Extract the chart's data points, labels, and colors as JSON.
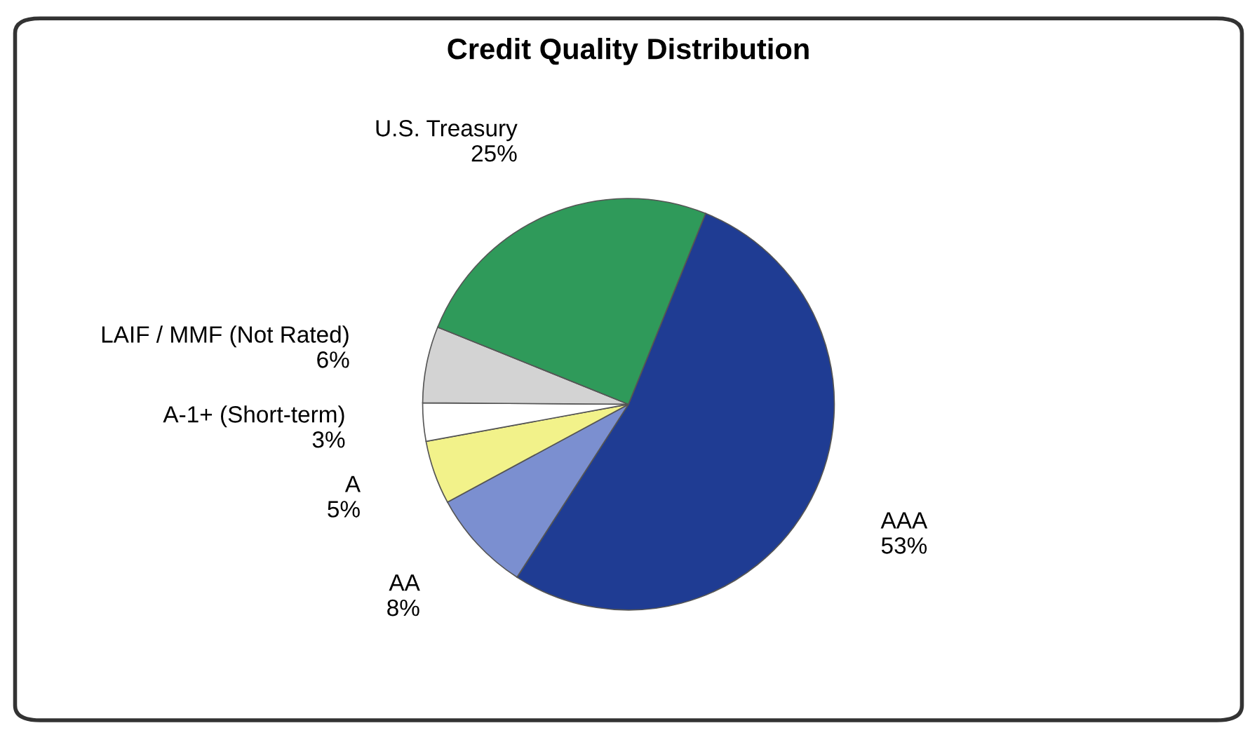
{
  "chart_data": {
    "type": "pie",
    "title": "Credit Quality Distribution",
    "categories": [
      "AAA",
      "AA",
      "A",
      "A-1+ (Short-term)",
      "LAIF / MMF (Not Rated)",
      "U.S. Treasury"
    ],
    "values": [
      53,
      8,
      5,
      3,
      6,
      25
    ],
    "value_labels": [
      "53%",
      "8%",
      "5%",
      "3%",
      "6%",
      "25%"
    ],
    "colors": [
      "#1f3c93",
      "#7b8fd0",
      "#f2f28a",
      "#ffffff",
      "#d3d3d3",
      "#2f9a5a"
    ],
    "legend": false
  }
}
